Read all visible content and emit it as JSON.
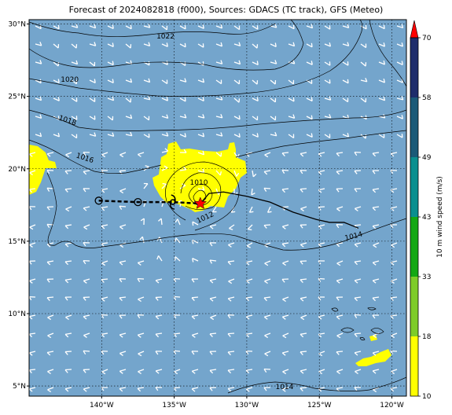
{
  "title": "Forecast of 2024082818 (f000), Sources: GDACS (TC track), GFS (Meteo)",
  "map": {
    "lon_range": [
      -145,
      -119
    ],
    "lat_range": [
      4.3,
      30.3
    ],
    "lon_ticks": [
      {
        "lon": -140,
        "label": "140°W"
      },
      {
        "lon": -135,
        "label": "135°W"
      },
      {
        "lon": -130,
        "label": "130°W"
      },
      {
        "lon": -125,
        "label": "125°W"
      },
      {
        "lon": -120,
        "label": "120°W"
      }
    ],
    "lat_ticks": [
      {
        "lat": 30,
        "label": "30°N"
      },
      {
        "lat": 25,
        "label": "25°N"
      },
      {
        "lat": 20,
        "label": "20°N"
      },
      {
        "lat": 15,
        "label": "15°N"
      },
      {
        "lat": 10,
        "label": "10°N"
      },
      {
        "lat": 5,
        "label": "5°N"
      }
    ],
    "ocean_color": "#74a5cc",
    "wind_yellow_color": "#ffff00"
  },
  "isobars": [
    {
      "label": "1022",
      "lon": -144.0,
      "lat": 29.2,
      "label_lon": -135.6,
      "label_lat": 29.0
    },
    {
      "label": "1020",
      "lon": -144.0,
      "lat": 26.2,
      "label_lon": -142.2,
      "label_lat": 26.0
    },
    {
      "label": "1018",
      "lon": -144.0,
      "lat": 24.0,
      "label_lon": -142.4,
      "label_lat": 23.2
    },
    {
      "label": "1016",
      "label_lon": -141.2,
      "label_lat": 20.6
    },
    {
      "label": "1014",
      "label_lon": -122.6,
      "label_lat": 15.2
    },
    {
      "label": "1014",
      "label_lon": -127.4,
      "label_lat": 4.8
    },
    {
      "label": "1012",
      "label_lon": -132.8,
      "label_lat": 16.5
    },
    {
      "label": "1010",
      "label_lon": -133.3,
      "label_lat": 18.9
    }
  ],
  "track": {
    "past": [
      {
        "lon": -140.2,
        "lat": 17.8
      },
      {
        "lon": -137.5,
        "lat": 17.7
      },
      {
        "lon": -135.1,
        "lat": 17.7
      },
      {
        "lon": -133.2,
        "lat": 17.6
      }
    ],
    "current": {
      "lon": -133.2,
      "lat": 17.6
    },
    "forecast": [
      {
        "lon": -133.2,
        "lat": 17.6
      },
      {
        "lon": -132.6,
        "lat": 18.3
      },
      {
        "lon": -131.6,
        "lat": 18.4
      },
      {
        "lon": -130.0,
        "lat": 18.1
      },
      {
        "lon": -128.4,
        "lat": 17.7
      },
      {
        "lon": -126.8,
        "lat": 17.0
      },
      {
        "lon": -125.2,
        "lat": 16.5
      },
      {
        "lon": -124.3,
        "lat": 16.3
      },
      {
        "lon": -123.3,
        "lat": 16.3
      },
      {
        "lon": -122.3,
        "lat": 15.9
      }
    ]
  },
  "colorbar": {
    "label": "10 m wind speed (m/s)",
    "ticks": [
      "10",
      "18",
      "33",
      "43",
      "49",
      "58",
      "70"
    ],
    "segments": [
      {
        "from": 10,
        "to": 18,
        "color": "#ffff00"
      },
      {
        "from": 18,
        "to": 33,
        "color": "#7ecc29"
      },
      {
        "from": 33,
        "to": 43,
        "color": "#14a814"
      },
      {
        "from": 43,
        "to": 49,
        "color": "#0a8f8f"
      },
      {
        "from": 49,
        "to": 58,
        "color": "#1b5a78"
      },
      {
        "from": 58,
        "to": 70,
        "color": "#1f2d6b"
      }
    ],
    "extend_color": "#ff0000"
  }
}
